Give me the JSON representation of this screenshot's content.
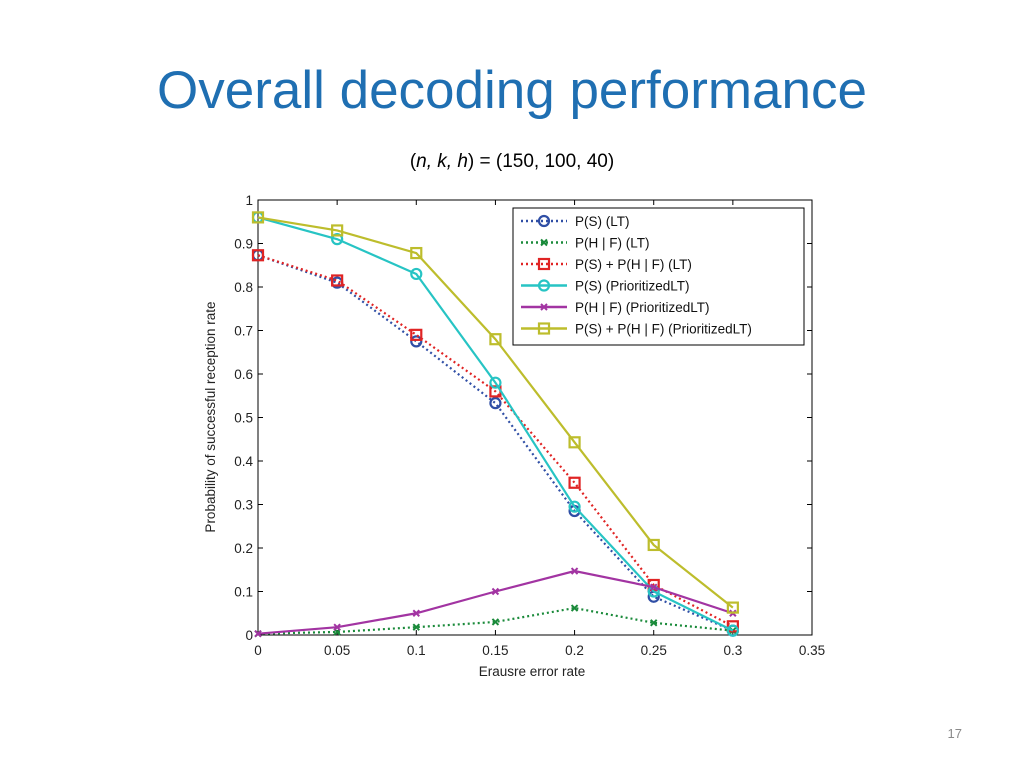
{
  "slide": {
    "title": "Overall decoding performance",
    "subtitle_parts": [
      "(",
      "n, k, h",
      ") = (150, 100, 40)"
    ],
    "page_number": "17"
  },
  "colors": {
    "title": "#1f6fb2",
    "lt_s": "#2f4ea5",
    "lt_hf": "#1a8a3a",
    "lt_sum": "#e02424",
    "pri_s": "#27c4c4",
    "pri_hf": "#a234a2",
    "pri_sum": "#bdbd2c"
  },
  "chart_data": {
    "type": "line",
    "xlabel": "Erausre error rate",
    "ylabel": "Probability of successful reception rate",
    "xlim": [
      0,
      0.35
    ],
    "ylim": [
      0,
      1
    ],
    "xticks": [
      0,
      0.05,
      0.1,
      0.15,
      0.2,
      0.25,
      0.3,
      0.35
    ],
    "xtick_labels": [
      "0",
      "0.05",
      "0.1",
      "0.15",
      "0.2",
      "0.25",
      "0.3",
      "0.35"
    ],
    "yticks": [
      0,
      0.1,
      0.2,
      0.3,
      0.4,
      0.5,
      0.6,
      0.7,
      0.8,
      0.9,
      1
    ],
    "ytick_labels": [
      "0",
      "0.1",
      "0.2",
      "0.3",
      "0.4",
      "0.5",
      "0.6",
      "0.7",
      "0.8",
      "0.9",
      "1"
    ],
    "grid": false,
    "legend_position": "top-right",
    "x": [
      0,
      0.05,
      0.1,
      0.15,
      0.2,
      0.25,
      0.3
    ],
    "series": [
      {
        "name": "P(S)  (LT)",
        "color": "#2f4ea5",
        "style": "dotted",
        "marker": "circle",
        "values": [
          0.873,
          0.81,
          0.675,
          0.533,
          0.285,
          0.088,
          0.01
        ]
      },
      {
        "name": "P(H | F) (LT)",
        "color": "#1a8a3a",
        "style": "dotted",
        "marker": "x",
        "values": [
          0.003,
          0.007,
          0.018,
          0.03,
          0.062,
          0.028,
          0.01
        ]
      },
      {
        "name": "P(S) + P(H | F) (LT)",
        "color": "#e02424",
        "style": "dotted",
        "marker": "square",
        "values": [
          0.873,
          0.815,
          0.69,
          0.56,
          0.35,
          0.115,
          0.02
        ]
      },
      {
        "name": "P(S) (PrioritizedLT)",
        "color": "#27c4c4",
        "style": "solid",
        "marker": "circle",
        "values": [
          0.96,
          0.91,
          0.83,
          0.58,
          0.295,
          0.1,
          0.01
        ]
      },
      {
        "name": "P(H | F) (PrioritizedLT)",
        "color": "#a234a2",
        "style": "solid",
        "marker": "x",
        "values": [
          0.003,
          0.018,
          0.05,
          0.1,
          0.147,
          0.11,
          0.05
        ]
      },
      {
        "name": "P(S) + P(H | F) (PrioritizedLT)",
        "color": "#bdbd2c",
        "style": "solid",
        "marker": "square",
        "values": [
          0.96,
          0.93,
          0.878,
          0.68,
          0.443,
          0.207,
          0.063
        ]
      }
    ]
  }
}
